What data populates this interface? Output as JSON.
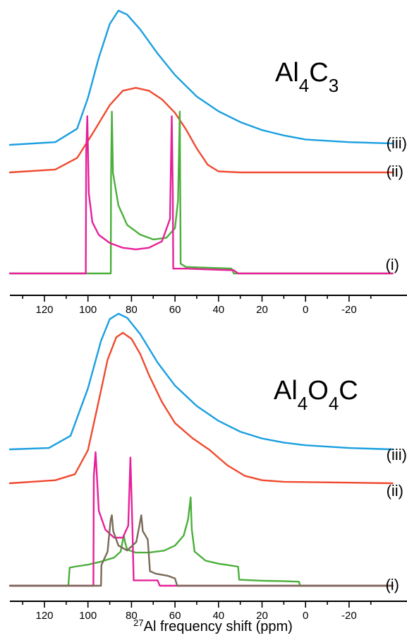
{
  "chart_data": [
    {
      "type": "line",
      "title": "Al4C3",
      "title_main": "Al",
      "title_sub1": "4",
      "title_mid": "C",
      "title_sub2": "3",
      "xlim": [
        130,
        -30
      ],
      "xticks": [
        "120",
        "100",
        "80",
        "60",
        "40",
        "20",
        "0",
        "-20"
      ],
      "series": [
        {
          "name": "(iii)",
          "color": "#1a9fe0",
          "points": [
            [
              140,
              0.0
            ],
            [
              115,
              0.02
            ],
            [
              105,
              0.12
            ],
            [
              100,
              0.35
            ],
            [
              95,
              0.65
            ],
            [
              90,
              0.9
            ],
            [
              86,
              1.0
            ],
            [
              82,
              0.97
            ],
            [
              76,
              0.86
            ],
            [
              68,
              0.68
            ],
            [
              60,
              0.52
            ],
            [
              50,
              0.36
            ],
            [
              40,
              0.25
            ],
            [
              30,
              0.17
            ],
            [
              20,
              0.11
            ],
            [
              10,
              0.07
            ],
            [
              0,
              0.04
            ],
            [
              -20,
              0.02
            ],
            [
              -40,
              0.01
            ]
          ]
        },
        {
          "name": "(ii)",
          "color": "#ef4a2f",
          "points": [
            [
              140,
              0.0
            ],
            [
              115,
              0.03
            ],
            [
              105,
              0.15
            ],
            [
              98,
              0.4
            ],
            [
              90,
              0.7
            ],
            [
              84,
              0.85
            ],
            [
              78,
              0.88
            ],
            [
              72,
              0.85
            ],
            [
              66,
              0.76
            ],
            [
              60,
              0.62
            ],
            [
              55,
              0.45
            ],
            [
              50,
              0.25
            ],
            [
              45,
              0.08
            ],
            [
              40,
              0.01
            ],
            [
              30,
              0.0
            ],
            [
              -40,
              0.0
            ]
          ]
        },
        {
          "name": "(i)",
          "color": "#4caf3c",
          "points": [
            [
              140,
              0.0
            ],
            [
              89.5,
              0.0
            ],
            [
              89.4,
              0.6
            ],
            [
              89,
              1.0
            ],
            [
              88.5,
              0.62
            ],
            [
              86,
              0.42
            ],
            [
              82,
              0.3
            ],
            [
              76,
              0.24
            ],
            [
              70,
              0.21
            ],
            [
              64,
              0.22
            ],
            [
              60,
              0.28
            ],
            [
              58.6,
              0.45
            ],
            [
              57.8,
              1.0
            ],
            [
              57.4,
              0.06
            ],
            [
              55,
              0.04
            ],
            [
              45,
              0.035
            ],
            [
              34,
              0.03
            ],
            [
              33,
              0.0
            ],
            [
              -40,
              0.0
            ]
          ]
        },
        {
          "name": "(i)",
          "color": "#e6209a",
          "points": [
            [
              140,
              0.0
            ],
            [
              101,
              0.0
            ],
            [
              100.8,
              0.75
            ],
            [
              100.3,
              0.98
            ],
            [
              99.6,
              0.5
            ],
            [
              98,
              0.32
            ],
            [
              95,
              0.24
            ],
            [
              90,
              0.19
            ],
            [
              84,
              0.16
            ],
            [
              78,
              0.15
            ],
            [
              72,
              0.16
            ],
            [
              66,
              0.2
            ],
            [
              62.3,
              0.34
            ],
            [
              61.5,
              0.98
            ],
            [
              61,
              0.5
            ],
            [
              60.8,
              0.03
            ],
            [
              55,
              0.03
            ],
            [
              45,
              0.025
            ],
            [
              33,
              0.02
            ],
            [
              31,
              0.0
            ],
            [
              -40,
              0.0
            ]
          ]
        }
      ],
      "trace_labels": [
        "(iii)",
        "(ii)",
        "(i)"
      ]
    },
    {
      "type": "line",
      "title": "Al4O4C",
      "title_main": "Al",
      "title_sub1": "4",
      "title_mid": "O",
      "title_sub2": "4",
      "title_end": "C",
      "xlim": [
        130,
        -30
      ],
      "xticks": [
        "120",
        "100",
        "80",
        "60",
        "40",
        "20",
        "0",
        "-20"
      ],
      "series": [
        {
          "name": "(iii)",
          "color": "#1a9fe0",
          "points": [
            [
              140,
              0.0
            ],
            [
              118,
              0.01
            ],
            [
              108,
              0.1
            ],
            [
              100,
              0.45
            ],
            [
              94,
              0.8
            ],
            [
              90,
              0.96
            ],
            [
              86,
              1.0
            ],
            [
              82,
              0.97
            ],
            [
              76,
              0.85
            ],
            [
              68,
              0.64
            ],
            [
              60,
              0.47
            ],
            [
              50,
              0.32
            ],
            [
              40,
              0.21
            ],
            [
              30,
              0.13
            ],
            [
              20,
              0.08
            ],
            [
              10,
              0.05
            ],
            [
              0,
              0.03
            ],
            [
              -20,
              0.01
            ],
            [
              -40,
              0.0
            ]
          ]
        },
        {
          "name": "(ii)",
          "color": "#ef4a2f",
          "points": [
            [
              140,
              0.0
            ],
            [
              115,
              0.02
            ],
            [
              106,
              0.06
            ],
            [
              100,
              0.22
            ],
            [
              95,
              0.55
            ],
            [
              91,
              0.82
            ],
            [
              87,
              0.97
            ],
            [
              84,
              1.0
            ],
            [
              80,
              0.96
            ],
            [
              76,
              0.86
            ],
            [
              72,
              0.72
            ],
            [
              66,
              0.54
            ],
            [
              60,
              0.4
            ],
            [
              52,
              0.3
            ],
            [
              44,
              0.22
            ],
            [
              36,
              0.12
            ],
            [
              28,
              0.05
            ],
            [
              20,
              0.02
            ],
            [
              10,
              0.01
            ],
            [
              -40,
              0.0
            ]
          ]
        },
        {
          "name": "(i)",
          "color": "#4caf3c",
          "points": [
            [
              140,
              0.0
            ],
            [
              109,
              0.0
            ],
            [
              108.4,
              0.18
            ],
            [
              106,
              0.19
            ],
            [
              100,
              0.21
            ],
            [
              94,
              0.24
            ],
            [
              88,
              0.28
            ],
            [
              85,
              0.34
            ],
            [
              84,
              0.45
            ],
            [
              83.5,
              0.5
            ],
            [
              83,
              0.44
            ],
            [
              82,
              0.36
            ],
            [
              78,
              0.33
            ],
            [
              72,
              0.33
            ],
            [
              65,
              0.35
            ],
            [
              60,
              0.4
            ],
            [
              56,
              0.5
            ],
            [
              54,
              0.66
            ],
            [
              52.8,
              0.88
            ],
            [
              52.3,
              0.56
            ],
            [
              51,
              0.34
            ],
            [
              46,
              0.25
            ],
            [
              40,
              0.22
            ],
            [
              34,
              0.2
            ],
            [
              31,
              0.19
            ],
            [
              30.5,
              0.06
            ],
            [
              20,
              0.05
            ],
            [
              10,
              0.045
            ],
            [
              3,
              0.04
            ],
            [
              2.5,
              0.0
            ],
            [
              -40,
              0.0
            ]
          ]
        },
        {
          "name": "(i)",
          "color": "#e6209a",
          "points": [
            [
              140,
              0.0
            ],
            [
              97.5,
              0.0
            ],
            [
              97.3,
              0.82
            ],
            [
              96.5,
              1.0
            ],
            [
              95,
              0.56
            ],
            [
              92,
              0.42
            ],
            [
              88,
              0.36
            ],
            [
              84,
              0.36
            ],
            [
              81.5,
              0.45
            ],
            [
              80.5,
              0.96
            ],
            [
              79.5,
              0.4
            ],
            [
              79,
              0.04
            ],
            [
              72,
              0.04
            ],
            [
              68,
              0.04
            ],
            [
              67,
              0.0
            ],
            [
              -40,
              0.0
            ]
          ]
        },
        {
          "name": "(i)",
          "color": "#7a6a58",
          "points": [
            [
              140,
              0.0
            ],
            [
              94,
              0.0
            ],
            [
              93.8,
              0.17
            ],
            [
              91,
              0.28
            ],
            [
              89.6,
              0.54
            ],
            [
              89,
              0.58
            ],
            [
              88.4,
              0.45
            ],
            [
              86,
              0.33
            ],
            [
              82,
              0.29
            ],
            [
              77.8,
              0.36
            ],
            [
              76.2,
              0.51
            ],
            [
              75.5,
              0.58
            ],
            [
              74.8,
              0.45
            ],
            [
              72.5,
              0.38
            ],
            [
              71.5,
              0.12
            ],
            [
              69,
              0.1
            ],
            [
              63,
              0.08
            ],
            [
              60,
              0.06
            ],
            [
              59,
              0.0
            ],
            [
              -40,
              0.0
            ]
          ]
        }
      ],
      "trace_labels": [
        "(iii)",
        "(ii)",
        "(i)"
      ]
    }
  ],
  "xlabel_sup": "27",
  "xlabel_text": "Al frequency shift (ppm)"
}
